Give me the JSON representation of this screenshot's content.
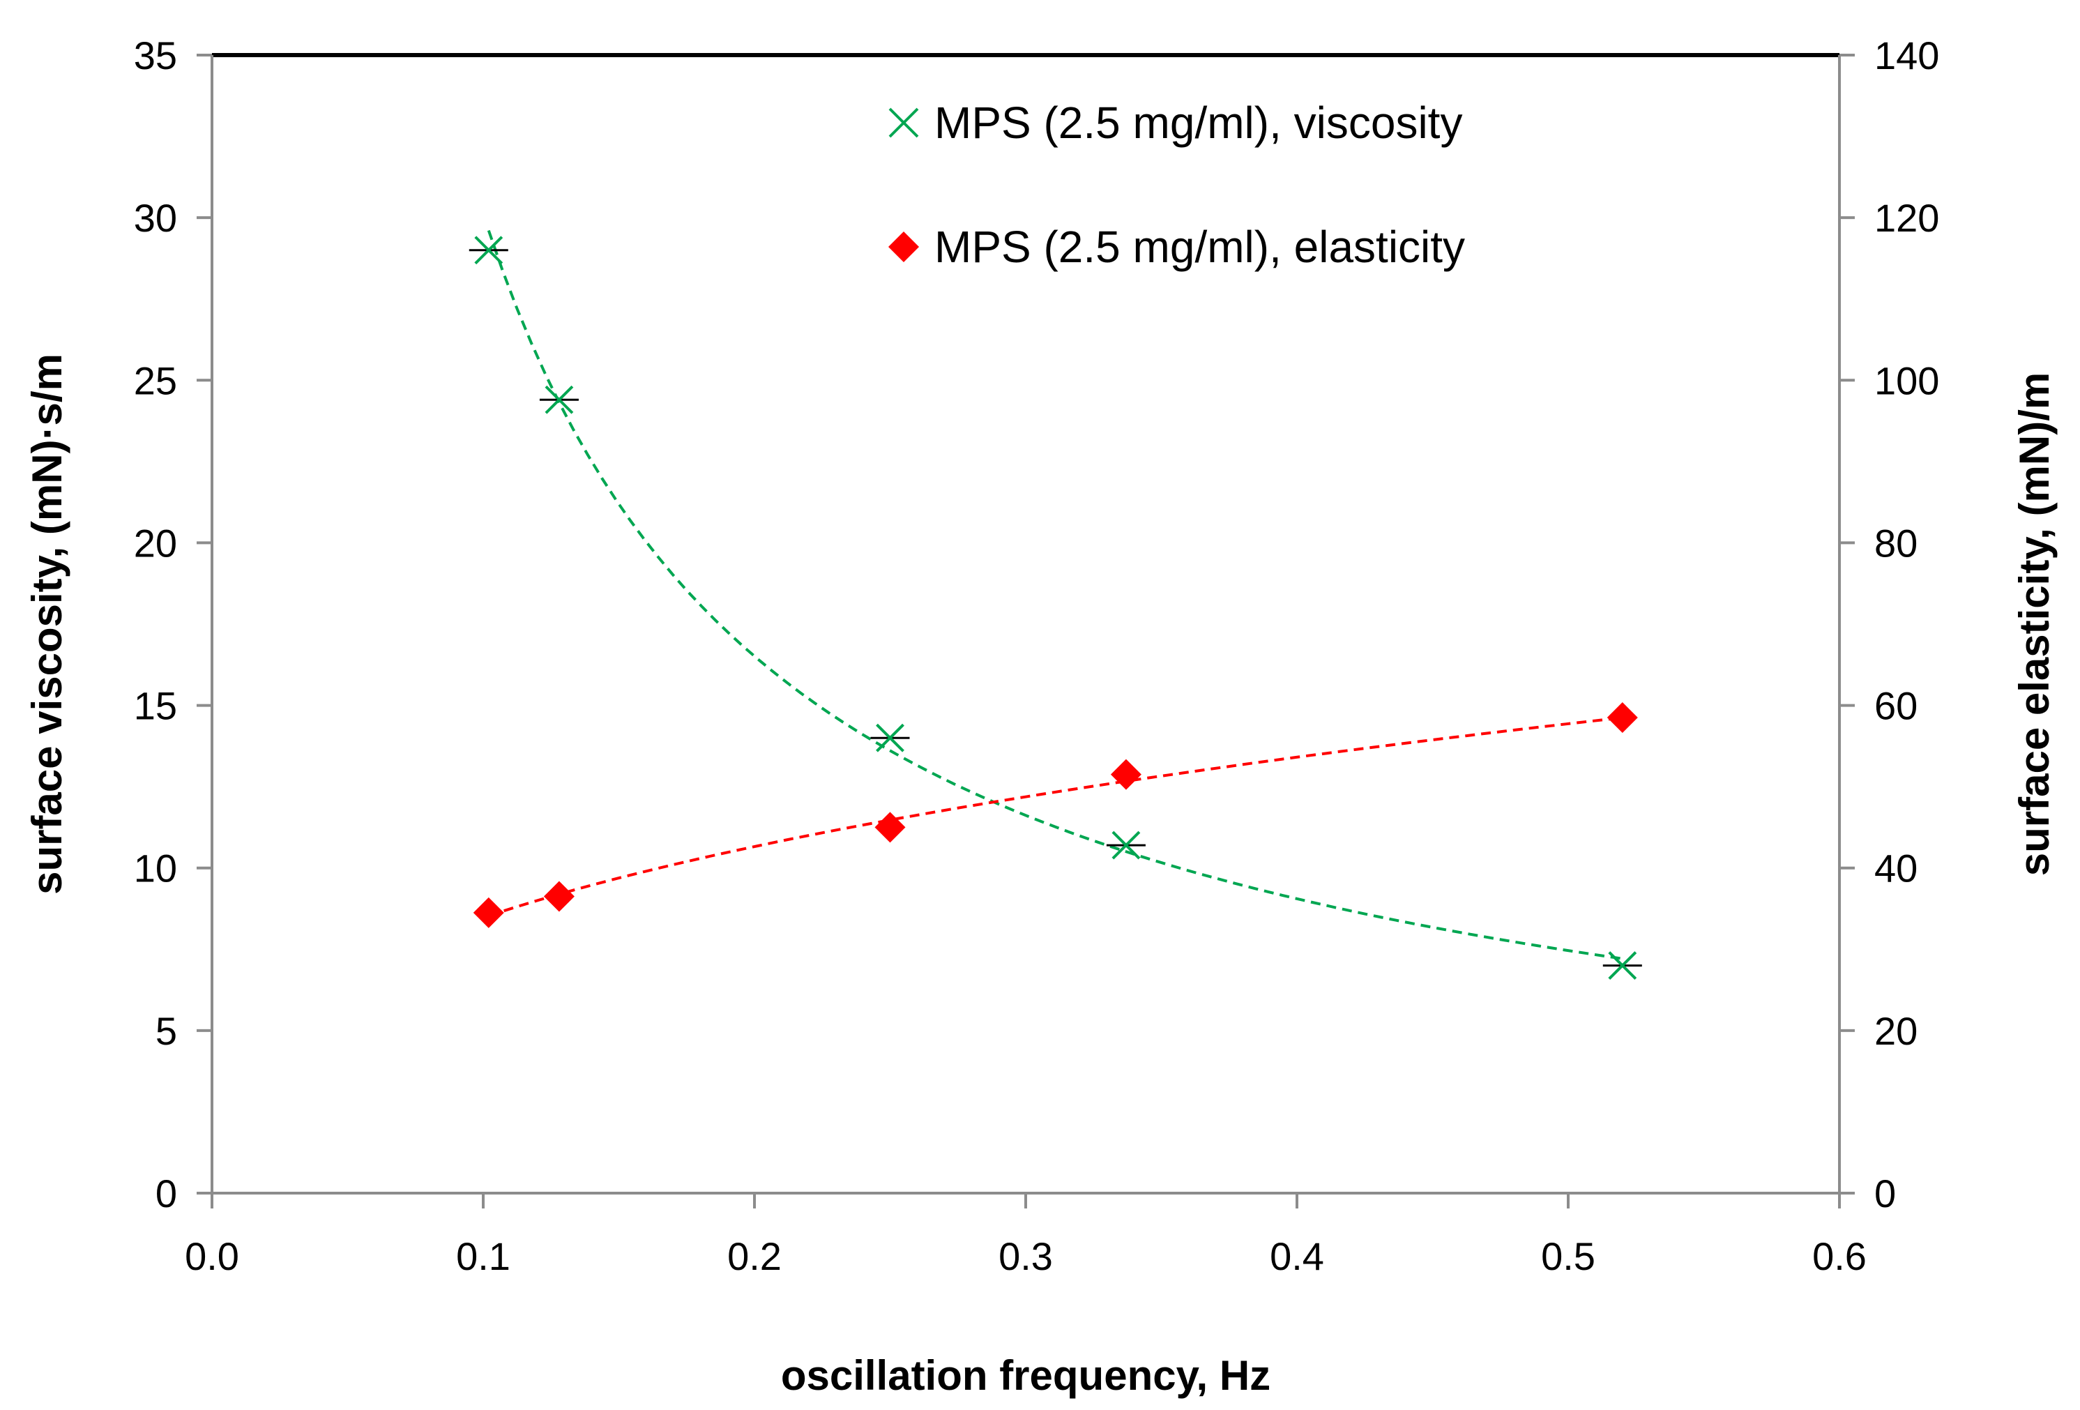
{
  "chart_data": {
    "type": "scatter",
    "xlabel": "oscillation frequency, Hz",
    "ylabel": "surface viscosity, (mN)·s/m",
    "y2label": "surface elasticity, (mN)/m",
    "xlim": [
      0,
      0.6
    ],
    "ylim": [
      0,
      35
    ],
    "y2lim": [
      0,
      140
    ],
    "x_ticks": [
      "0.0",
      "0.1",
      "0.2",
      "0.3",
      "0.4",
      "0.5",
      "0.6"
    ],
    "y_ticks": [
      "0",
      "5",
      "10",
      "15",
      "20",
      "25",
      "30",
      "35"
    ],
    "y2_ticks": [
      "0",
      "20",
      "40",
      "60",
      "80",
      "100",
      "120",
      "140"
    ],
    "grid": false,
    "legend_position": "top-center",
    "series": [
      {
        "name": "MPS (2.5 mg/ml), viscosity",
        "axis": "left",
        "marker": "x",
        "color": "#00a651",
        "trendline": "dashed",
        "x": [
          0.102,
          0.128,
          0.25,
          0.337,
          0.52
        ],
        "y": [
          29.0,
          24.4,
          14.0,
          10.7,
          7.0
        ]
      },
      {
        "name": "MPS (2.5 mg/ml), elasticity",
        "axis": "right",
        "marker": "diamond",
        "color": "#ff0000",
        "trendline": "dashed",
        "x": [
          0.102,
          0.128,
          0.25,
          0.337,
          0.52
        ],
        "y": [
          34.5,
          36.5,
          45.0,
          51.5,
          58.5
        ]
      }
    ]
  }
}
